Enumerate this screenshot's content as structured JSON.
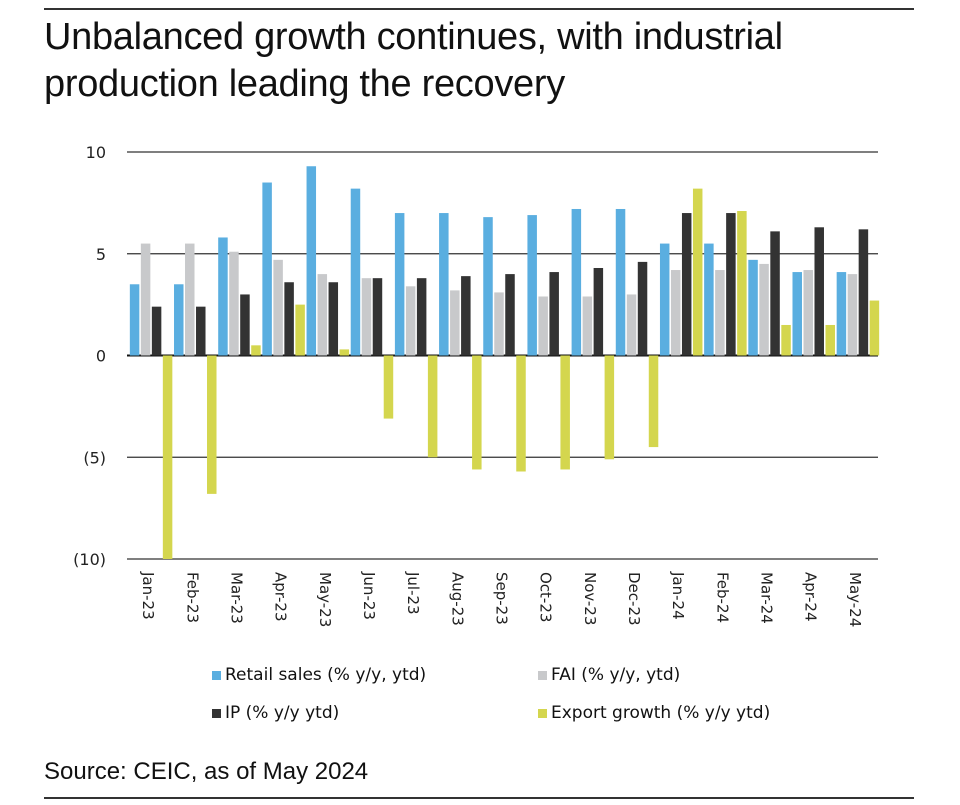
{
  "title": "Unbalanced growth continues, with industrial production leading the recovery",
  "source": "Source: CEIC, as of May 2024",
  "chart_data": {
    "type": "bar",
    "title": "Unbalanced growth continues, with industrial production leading the recovery",
    "xlabel": "",
    "ylabel": "",
    "ylim": [
      -10,
      10
    ],
    "yticks": [
      10,
      5,
      0,
      -5,
      -10
    ],
    "ytick_labels": [
      "10",
      "5",
      "0",
      "(5)",
      "(10)"
    ],
    "grid": true,
    "legend_position": "bottom",
    "categories": [
      "Jan-23",
      "Feb-23",
      "Mar-23",
      "Apr-23",
      "May-23",
      "Jun-23",
      "Jul-23",
      "Aug-23",
      "Sep-23",
      "Oct-23",
      "Nov-23",
      "Dec-23",
      "Jan-24",
      "Feb-24",
      "Mar-24",
      "Apr-24",
      "May-24"
    ],
    "series": [
      {
        "name": "Retail sales (% y/y, ytd)",
        "color": "#5aaee0",
        "values": [
          3.5,
          3.5,
          5.8,
          8.5,
          9.3,
          8.2,
          7.0,
          7.0,
          6.8,
          6.9,
          7.2,
          7.2,
          5.5,
          5.5,
          4.7,
          4.1,
          4.1
        ]
      },
      {
        "name": "FAI (% y/y, ytd)",
        "color": "#c8c9cb",
        "values": [
          5.5,
          5.5,
          5.1,
          4.7,
          4.0,
          3.8,
          3.4,
          3.2,
          3.1,
          2.9,
          2.9,
          3.0,
          4.2,
          4.2,
          4.5,
          4.2,
          4.0
        ]
      },
      {
        "name": "IP (% y/y ytd)",
        "color": "#333333",
        "values": [
          2.4,
          2.4,
          3.0,
          3.6,
          3.6,
          3.8,
          3.8,
          3.9,
          4.0,
          4.1,
          4.3,
          4.6,
          7.0,
          7.0,
          6.1,
          6.3,
          6.2
        ]
      },
      {
        "name": "Export growth (% y/y ytd)",
        "color": "#d4d64e",
        "values": [
          -10.0,
          -6.8,
          0.5,
          2.5,
          0.3,
          -3.1,
          -5.0,
          -5.6,
          -5.7,
          -5.6,
          -5.1,
          -4.5,
          8.2,
          7.1,
          1.5,
          1.5,
          2.7
        ]
      }
    ]
  }
}
